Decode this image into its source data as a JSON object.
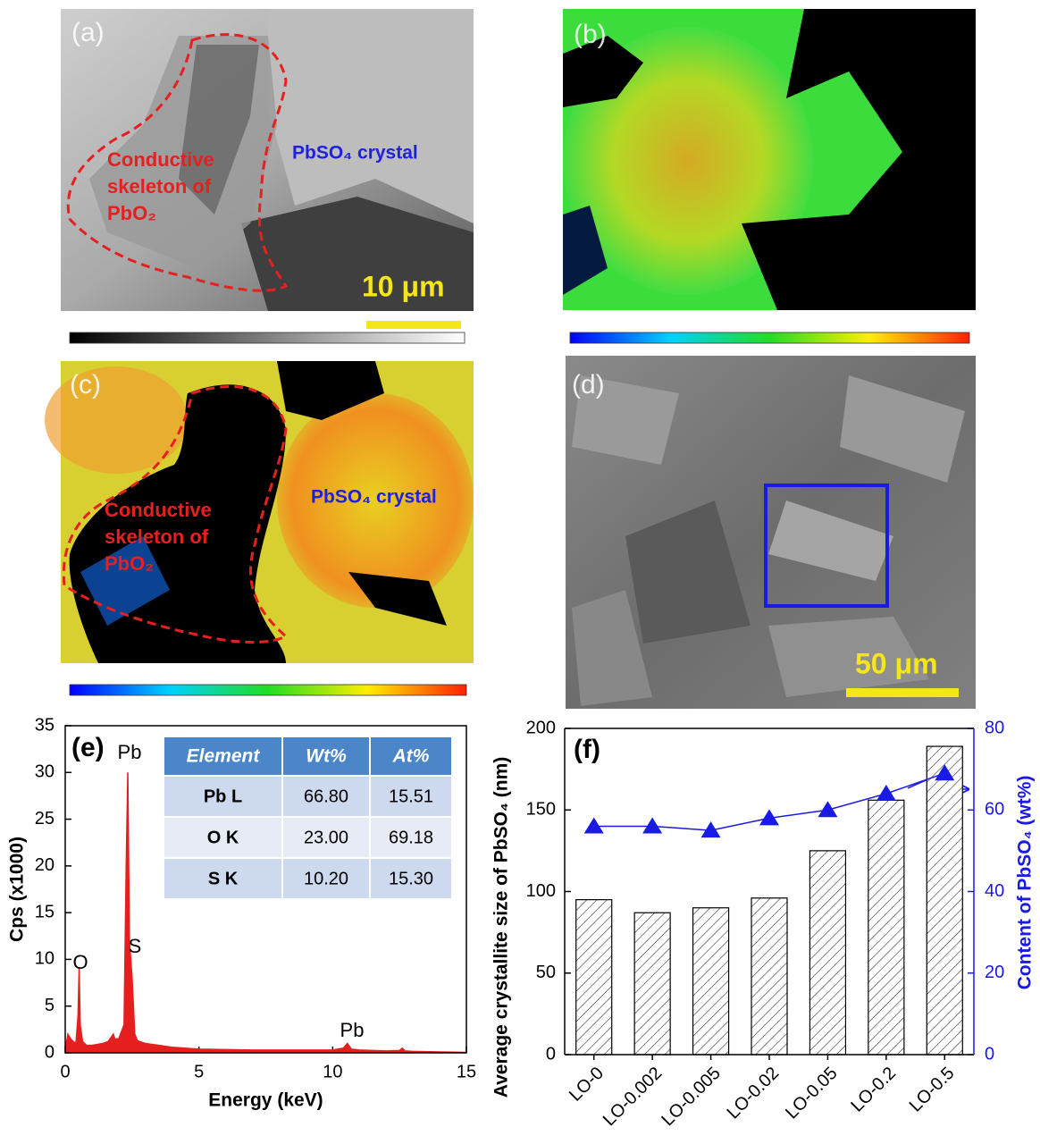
{
  "panels": [
    {
      "label": "(a)",
      "annotation_lines": [
        "Conductive",
        "skeleton of",
        "PbO₂"
      ],
      "crystal_label": "PbSO₄ crystal",
      "scale_bar": "10 μm"
    },
    {
      "label": "(b)"
    },
    {
      "label": "(c)",
      "annotation_lines": [
        "Conductive",
        "skeleton of",
        "PbO₂"
      ],
      "crystal_label": "PbSO₄ crystal"
    },
    {
      "label": "(d)",
      "scale_bar": "50 μm"
    }
  ],
  "eds_table": {
    "columns": [
      "Element",
      "Wt%",
      "At%"
    ],
    "rows": [
      [
        "Pb L",
        "66.80",
        "15.51"
      ],
      [
        "O K",
        "23.00",
        "69.18"
      ],
      [
        "S K",
        "10.20",
        "15.30"
      ]
    ]
  },
  "chart_data": [
    {
      "type": "area",
      "label": "(e)",
      "xlabel": "Energy (keV)",
      "ylabel": "Cps (x1000)",
      "color": "#e51e1e",
      "x": [
        0,
        0.1,
        0.2,
        0.3,
        0.4,
        0.48,
        0.52,
        0.56,
        0.65,
        0.8,
        1.0,
        1.2,
        1.4,
        1.6,
        1.75,
        1.8,
        1.85,
        2.0,
        2.2,
        2.28,
        2.34,
        2.4,
        2.5,
        2.6,
        2.7,
        3.0,
        3.5,
        4,
        5,
        6,
        7,
        8,
        9,
        10,
        10.4,
        10.55,
        10.7,
        11,
        12,
        12.5,
        12.6,
        12.7,
        13,
        14,
        15
      ],
      "values": [
        0.3,
        2.0,
        1.5,
        1.2,
        1.0,
        4,
        9,
        3,
        1.2,
        0.8,
        0.8,
        0.9,
        1.0,
        1.2,
        1.8,
        2.0,
        1.5,
        1.5,
        3,
        20,
        30,
        12,
        8,
        2,
        1.3,
        1.0,
        0.8,
        0.6,
        0.4,
        0.35,
        0.3,
        0.3,
        0.3,
        0.3,
        0.5,
        1.0,
        0.4,
        0.3,
        0.2,
        0.25,
        0.5,
        0.2,
        0.15,
        0.1,
        0.05
      ],
      "annotations": [
        "Pb",
        "O",
        "S",
        "Pb"
      ],
      "xlim": [
        0,
        15
      ],
      "xticks": [
        0,
        5,
        10,
        15
      ],
      "ylim": [
        0,
        35
      ],
      "yticks": [
        0,
        5,
        10,
        15,
        20,
        25,
        30,
        35
      ]
    },
    {
      "type": "bar",
      "label": "(f)",
      "ylabel": "Average crystallite size of PbSO₄ (nm)",
      "y2label": "Content of PbSO₄ (wt%)",
      "categories": [
        "LO-0",
        "LO-0.002",
        "LO-0.005",
        "LO-0.02",
        "LO-0.05",
        "LO-0.2",
        "LO-0.5"
      ],
      "series": [
        {
          "values": [
            95,
            87,
            90,
            96,
            125,
            156,
            189
          ],
          "color": "#000000",
          "hatch": true
        },
        {
          "values": [
            56,
            56,
            55,
            58,
            60,
            64,
            69
          ],
          "color": "#1a1ae6",
          "axis": "y2",
          "marker": "triangle"
        }
      ],
      "ylim": [
        0,
        200
      ],
      "yticks": [
        0,
        50,
        100,
        150,
        200
      ],
      "y2lim": [
        0,
        80
      ],
      "y2ticks": [
        0,
        20,
        40,
        60,
        80
      ]
    }
  ]
}
